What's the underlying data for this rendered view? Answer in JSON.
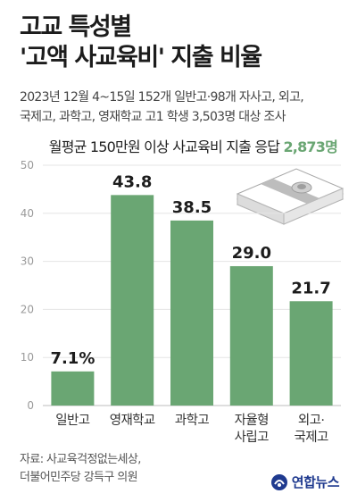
{
  "title": {
    "line1": "고교 특성별",
    "line2": "'고액 사교육비' 지출 비율"
  },
  "subtitle": {
    "line1": "2023년 12월 4~15일 152개 일반고·98개 자사고, 외고,",
    "line2": "국제고, 과학고, 영재학교 고1 학생 3,503명 대상 조사"
  },
  "note": {
    "prefix": "월평균 150만원 이상 사교육비 지출 응답",
    "count": "2,873명",
    "count_color": "#6aa673"
  },
  "source": {
    "line1": "자료: 사교육걱정없는세상,",
    "line2": "더불어민주당 강득구 의원"
  },
  "logo": {
    "text": "연합뉴스",
    "icon": "yonhap-logo-icon",
    "color": "#1f3a8f"
  },
  "decoration": {
    "icon": "money-stack-icon"
  },
  "chart_data": {
    "type": "bar",
    "categories": [
      [
        "일반고"
      ],
      [
        "영재학교"
      ],
      [
        "과학고"
      ],
      [
        "자율형",
        "사립고"
      ],
      [
        "외고·",
        "국제고"
      ]
    ],
    "values": [
      7.1,
      43.8,
      38.5,
      29.0,
      21.7
    ],
    "value_labels": [
      "7.1%",
      "43.8",
      "38.5",
      "29.0",
      "21.7"
    ],
    "yticks": [
      0,
      10,
      20,
      30,
      40,
      50
    ],
    "ytick_labels": [
      "0",
      "10",
      "20",
      "30",
      "40",
      "50"
    ],
    "ylim": [
      0,
      50
    ],
    "bar_color": "#6aa673",
    "grid": true
  }
}
